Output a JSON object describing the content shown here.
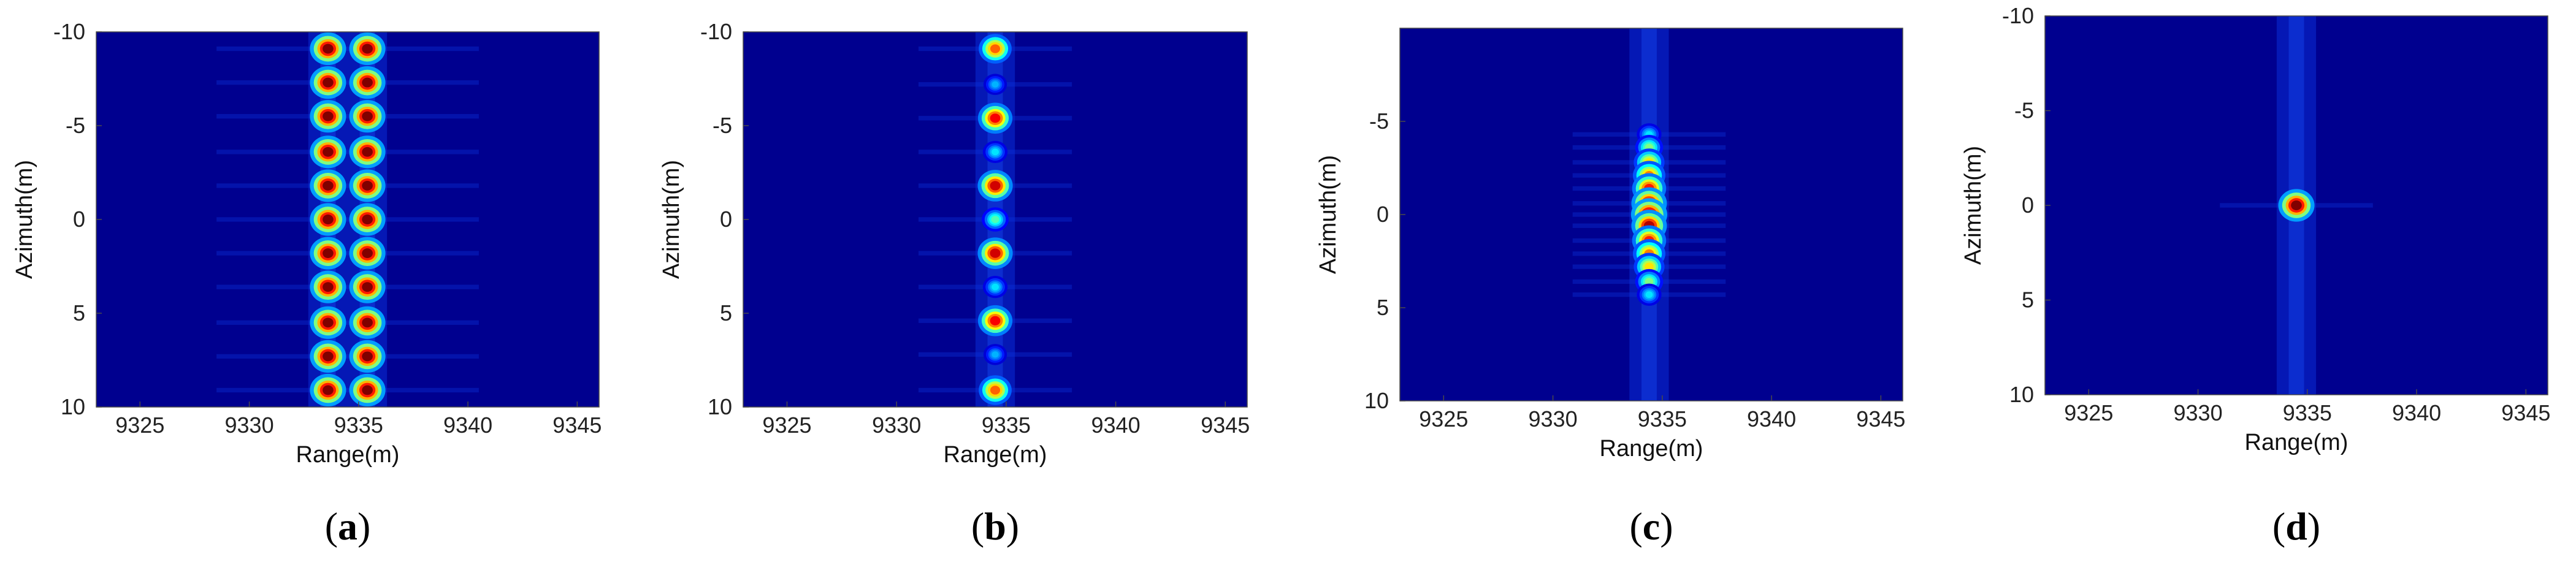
{
  "chart_data": [
    {
      "type": "heatmap",
      "caption": {
        "open": "(",
        "letter": "a",
        "close": ")"
      },
      "xlabel": "Range(m)",
      "ylabel": "Azimuth(m)",
      "xlim": [
        9323,
        9346
      ],
      "ylim": [
        -10,
        10
      ],
      "xticks": [
        9325,
        9330,
        9335,
        9340,
        9345
      ],
      "yticks": [
        -10,
        -5,
        0,
        5,
        10
      ],
      "ytick_labels": [
        "-10",
        "-5",
        "0",
        "5",
        "10"
      ],
      "colormap": "jet",
      "background_color": "#00008f",
      "targets": [
        {
          "x": 9333.6,
          "y": -9.1,
          "v": 1.0
        },
        {
          "x": 9335.4,
          "y": -9.1,
          "v": 1.0
        },
        {
          "x": 9333.6,
          "y": -7.3,
          "v": 1.0
        },
        {
          "x": 9335.4,
          "y": -7.3,
          "v": 1.0
        },
        {
          "x": 9333.6,
          "y": -5.5,
          "v": 1.0
        },
        {
          "x": 9335.4,
          "y": -5.5,
          "v": 1.0
        },
        {
          "x": 9333.6,
          "y": -3.6,
          "v": 1.0
        },
        {
          "x": 9335.4,
          "y": -3.6,
          "v": 1.0
        },
        {
          "x": 9333.6,
          "y": -1.8,
          "v": 1.0
        },
        {
          "x": 9335.4,
          "y": -1.8,
          "v": 1.0
        },
        {
          "x": 9333.6,
          "y": 0.0,
          "v": 1.0
        },
        {
          "x": 9335.4,
          "y": 0.0,
          "v": 1.0
        },
        {
          "x": 9333.6,
          "y": 1.8,
          "v": 1.0
        },
        {
          "x": 9335.4,
          "y": 1.8,
          "v": 1.0
        },
        {
          "x": 9333.6,
          "y": 3.6,
          "v": 1.0
        },
        {
          "x": 9335.4,
          "y": 3.6,
          "v": 1.0
        },
        {
          "x": 9333.6,
          "y": 5.5,
          "v": 1.0
        },
        {
          "x": 9335.4,
          "y": 5.5,
          "v": 1.0
        },
        {
          "x": 9333.6,
          "y": 7.3,
          "v": 1.0
        },
        {
          "x": 9335.4,
          "y": 7.3,
          "v": 1.0
        },
        {
          "x": 9333.6,
          "y": 9.1,
          "v": 1.0
        },
        {
          "x": 9335.4,
          "y": 9.1,
          "v": 1.0
        }
      ]
    },
    {
      "type": "heatmap",
      "caption": {
        "open": "(",
        "letter": "b",
        "close": ")"
      },
      "xlabel": "Range(m)",
      "ylabel": "Azimuth(m)",
      "xlim": [
        9323,
        9346
      ],
      "ylim": [
        -10,
        10
      ],
      "xticks": [
        9325,
        9330,
        9335,
        9340,
        9345
      ],
      "yticks": [
        -10,
        -5,
        0,
        5,
        10
      ],
      "ytick_labels": [
        "-10",
        "-5",
        "0",
        "5",
        "10"
      ],
      "colormap": "jet",
      "background_color": "#00008f",
      "targets": [
        {
          "x": 9334.5,
          "y": -9.1,
          "v": 0.78
        },
        {
          "x": 9334.5,
          "y": -5.4,
          "v": 0.88
        },
        {
          "x": 9334.5,
          "y": -1.8,
          "v": 0.92
        },
        {
          "x": 9334.5,
          "y": 1.8,
          "v": 0.92
        },
        {
          "x": 9334.5,
          "y": 5.4,
          "v": 0.88
        },
        {
          "x": 9334.5,
          "y": 9.1,
          "v": 0.78
        },
        {
          "x": 9334.5,
          "y": -7.2,
          "v": 0.3
        },
        {
          "x": 9334.5,
          "y": -3.6,
          "v": 0.35
        },
        {
          "x": 9334.5,
          "y": 0.0,
          "v": 0.45
        },
        {
          "x": 9334.5,
          "y": 3.6,
          "v": 0.35
        },
        {
          "x": 9334.5,
          "y": 7.2,
          "v": 0.3
        }
      ]
    },
    {
      "type": "heatmap",
      "caption": {
        "open": "(",
        "letter": "c",
        "close": ")"
      },
      "xlabel": "Range(m)",
      "ylabel": "Azimuth(m)",
      "xlim": [
        9323,
        9346
      ],
      "ylim": [
        -10,
        10
      ],
      "xticks": [
        9325,
        9330,
        9335,
        9340,
        9345
      ],
      "yticks": [
        -5,
        0,
        5,
        10
      ],
      "ytick_labels": [
        "-5",
        "0",
        "5",
        "10"
      ],
      "colormap": "jet",
      "background_color": "#00008f",
      "targets": [
        {
          "x": 9334.4,
          "y": -4.3,
          "v": 0.35
        },
        {
          "x": 9334.4,
          "y": -3.6,
          "v": 0.5
        },
        {
          "x": 9334.4,
          "y": -2.8,
          "v": 0.65
        },
        {
          "x": 9334.4,
          "y": -2.1,
          "v": 0.75
        },
        {
          "x": 9334.4,
          "y": -1.4,
          "v": 0.85
        },
        {
          "x": 9334.4,
          "y": -0.6,
          "v": 0.95
        },
        {
          "x": 9334.4,
          "y": 0.0,
          "v": 1.0
        },
        {
          "x": 9334.4,
          "y": 0.6,
          "v": 0.95
        },
        {
          "x": 9334.4,
          "y": 1.4,
          "v": 0.85
        },
        {
          "x": 9334.4,
          "y": 2.1,
          "v": 0.75
        },
        {
          "x": 9334.4,
          "y": 2.8,
          "v": 0.65
        },
        {
          "x": 9334.4,
          "y": 3.6,
          "v": 0.5
        },
        {
          "x": 9334.4,
          "y": 4.3,
          "v": 0.35
        }
      ]
    },
    {
      "type": "heatmap",
      "caption": {
        "open": "(",
        "letter": "d",
        "close": ")"
      },
      "xlabel": "Range(m)",
      "ylabel": "Azimuth(m)",
      "xlim": [
        9323,
        9346
      ],
      "ylim": [
        -10,
        10
      ],
      "xticks": [
        9325,
        9330,
        9335,
        9340,
        9345
      ],
      "yticks": [
        -10,
        -5,
        0,
        5,
        10
      ],
      "ytick_labels": [
        "-10",
        "-5",
        "0",
        "5",
        "10"
      ],
      "colormap": "jet",
      "background_color": "#00008f",
      "targets": [
        {
          "x": 9334.5,
          "y": 0.0,
          "v": 1.0
        }
      ]
    }
  ]
}
